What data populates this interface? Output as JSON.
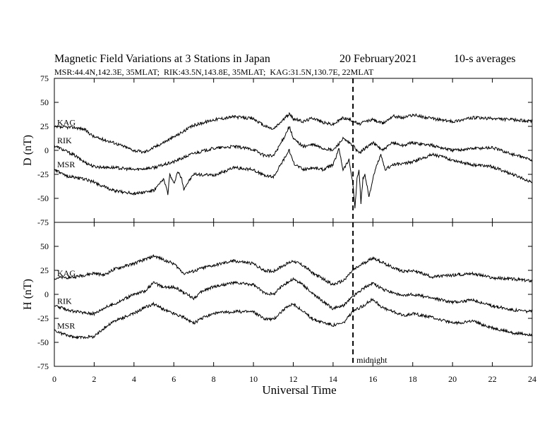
{
  "header": {
    "title": "Magnetic Field Variations at 3 Stations in Japan",
    "date": "20 February2021",
    "averaging": "10-s averages",
    "stations_line": "MSR:44.4N,142.3E, 35MLAT;  RIK:43.5N,143.8E, 35MLAT;  KAG:31.5N,130.7E, 22MLAT"
  },
  "colors": {
    "line": "#000000",
    "background": "#ffffff"
  },
  "chart_data": [
    {
      "type": "line",
      "ylabel": "D (nT)",
      "ylim": [
        -75,
        75
      ],
      "yticks": [
        -75,
        -50,
        -25,
        0,
        25,
        50,
        75
      ],
      "xlim": [
        0,
        24
      ],
      "xticks": [
        0,
        2,
        4,
        6,
        8,
        10,
        12,
        14,
        16,
        18,
        20,
        22,
        24
      ],
      "series": [
        {
          "name": "KAG",
          "x": [
            0,
            1,
            1.5,
            2,
            3,
            4,
            4.5,
            5,
            6,
            7,
            8,
            9,
            10,
            10.5,
            11,
            11.5,
            11.8,
            12,
            12.5,
            13,
            13.5,
            14,
            14.5,
            15,
            15.3,
            15.6,
            16,
            16.5,
            17,
            17.5,
            18,
            19,
            20,
            21,
            22,
            23,
            24
          ],
          "y": [
            24,
            24,
            22,
            14,
            8,
            0,
            -2,
            3,
            14,
            26,
            32,
            35,
            33,
            26,
            22,
            32,
            38,
            33,
            30,
            34,
            29,
            27,
            34,
            31,
            27,
            30,
            32,
            28,
            36,
            34,
            37,
            33,
            30,
            34,
            33,
            32,
            30
          ]
        },
        {
          "name": "RIK",
          "x": [
            0,
            0.5,
            1,
            1.5,
            2,
            3,
            4,
            5,
            6,
            7,
            8,
            9,
            10,
            10.5,
            11,
            11.5,
            11.8,
            12,
            12.5,
            13,
            13.5,
            14,
            14.5,
            15,
            15.3,
            15.6,
            16,
            16.5,
            17,
            17.5,
            18,
            19,
            20,
            21,
            22,
            23,
            24
          ],
          "y": [
            5,
            0,
            -5,
            -12,
            -17,
            -18,
            -20,
            -18,
            -12,
            -3,
            2,
            4,
            1,
            -5,
            -6,
            12,
            25,
            12,
            4,
            6,
            2,
            0,
            12,
            5,
            -3,
            2,
            8,
            0,
            8,
            5,
            8,
            5,
            0,
            2,
            3,
            -4,
            -10
          ]
        },
        {
          "name": "MSR",
          "x": [
            0,
            0.5,
            1,
            1.5,
            2,
            2.5,
            3,
            4,
            5,
            5.5,
            5.7,
            5.8,
            6,
            6.2,
            6.4,
            6.5,
            7,
            8,
            9,
            10,
            10.5,
            11,
            11.5,
            11.8,
            12,
            12.5,
            13,
            13.5,
            14,
            14.3,
            14.5,
            14.8,
            15,
            15.1,
            15.2,
            15.3,
            15.4,
            15.5,
            15.6,
            15.8,
            16,
            16.2,
            16.4,
            16.6,
            17,
            17.5,
            18,
            19,
            20,
            21,
            22,
            23,
            24
          ],
          "y": [
            -20,
            -26,
            -28,
            -30,
            -33,
            -38,
            -42,
            -45,
            -42,
            -30,
            -45,
            -25,
            -35,
            -22,
            -30,
            -40,
            -25,
            -26,
            -18,
            -20,
            -26,
            -28,
            -10,
            0,
            -13,
            -20,
            -18,
            -20,
            -15,
            2,
            -20,
            -10,
            -35,
            -60,
            -30,
            -20,
            -55,
            -30,
            -25,
            -48,
            -30,
            -15,
            -5,
            -20,
            -15,
            -14,
            -12,
            -4,
            -10,
            -15,
            -17,
            -25,
            -33
          ]
        }
      ]
    },
    {
      "type": "line",
      "ylabel": "H (nT)",
      "ylim": [
        -75,
        75
      ],
      "yticks": [
        -75,
        -50,
        -25,
        0,
        25,
        50,
        75
      ],
      "xlim": [
        0,
        24
      ],
      "xticks": [
        0,
        2,
        4,
        6,
        8,
        10,
        12,
        14,
        16,
        18,
        20,
        22,
        24
      ],
      "xlabel": "Universal Time",
      "series": [
        {
          "name": "KAG",
          "x": [
            0,
            1,
            2,
            2.5,
            3,
            4,
            4.5,
            5,
            5.5,
            6,
            6.5,
            7,
            7.5,
            8,
            9,
            10,
            10.5,
            11,
            11.5,
            12,
            12.5,
            13,
            14,
            14.5,
            15,
            15.5,
            16,
            16.5,
            17,
            17.5,
            18,
            19,
            20,
            21,
            22,
            23,
            24
          ],
          "y": [
            17,
            18,
            22,
            20,
            26,
            32,
            36,
            40,
            36,
            32,
            22,
            24,
            28,
            30,
            35,
            32,
            25,
            24,
            30,
            35,
            30,
            22,
            10,
            14,
            25,
            32,
            38,
            33,
            28,
            24,
            25,
            18,
            20,
            22,
            17,
            16,
            14
          ]
        },
        {
          "name": "RIK",
          "x": [
            0,
            1,
            2,
            2.5,
            3,
            4,
            4.5,
            5,
            5.5,
            6,
            6.5,
            7,
            7.5,
            8,
            9,
            10,
            10.5,
            11,
            11.5,
            12,
            12.5,
            13,
            14,
            14.5,
            15,
            15.5,
            16,
            16.5,
            17,
            17.5,
            18,
            19,
            20,
            21,
            22,
            23,
            24
          ],
          "y": [
            -12,
            -18,
            -20,
            -14,
            -10,
            0,
            3,
            12,
            7,
            8,
            2,
            -4,
            4,
            8,
            12,
            10,
            2,
            0,
            10,
            16,
            10,
            0,
            -15,
            -12,
            -2,
            6,
            12,
            5,
            2,
            -2,
            0,
            -4,
            -8,
            -6,
            -12,
            -16,
            -18
          ]
        },
        {
          "name": "MSR",
          "x": [
            0,
            1,
            2,
            2.5,
            3,
            4,
            4.5,
            5,
            5.5,
            6,
            6.5,
            7,
            7.5,
            8,
            9,
            10,
            10.5,
            11,
            11.5,
            12,
            12.5,
            13,
            14,
            14.5,
            15,
            15.5,
            16,
            16.5,
            17,
            17.5,
            18,
            19,
            20,
            21,
            22,
            23,
            24
          ],
          "y": [
            -38,
            -45,
            -44,
            -35,
            -28,
            -20,
            -14,
            -10,
            -16,
            -20,
            -24,
            -30,
            -24,
            -20,
            -18,
            -18,
            -25,
            -26,
            -16,
            -10,
            -18,
            -26,
            -32,
            -30,
            -18,
            -12,
            -5,
            -14,
            -18,
            -22,
            -20,
            -24,
            -30,
            -28,
            -35,
            -40,
            -42
          ]
        }
      ]
    }
  ],
  "annotations": {
    "midnight_label": "midnight",
    "midnight_ut": 15
  }
}
